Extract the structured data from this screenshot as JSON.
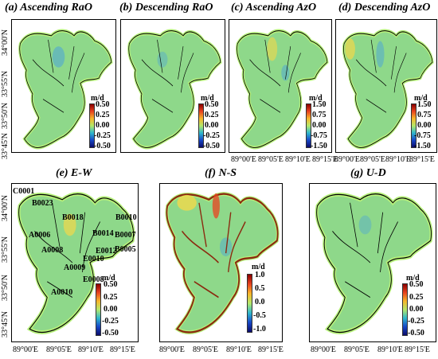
{
  "panels": {
    "a": {
      "title": "(a) Ascending RaO",
      "unit": "m/d",
      "ticks": [
        "0.50",
        "0.25",
        "0.00",
        "-0.25",
        "-0.50"
      ]
    },
    "b": {
      "title": "(b) Descending RaO",
      "unit": "m/d",
      "ticks": [
        "0.50",
        "0.25",
        "0.00",
        "-0.25",
        "-0.50"
      ]
    },
    "c": {
      "title": "(c) Ascending AzO",
      "unit": "m/d",
      "ticks": [
        "1.50",
        "0.75",
        "0.00",
        "-0.75",
        "-1.50"
      ]
    },
    "d": {
      "title": "(d) Descending AzO",
      "unit": "m/d",
      "ticks": [
        "1.50",
        "0.75",
        "0.00",
        "-0.75",
        "-1.50"
      ]
    },
    "e": {
      "title": "(e) E-W",
      "unit": "m/d",
      "ticks": [
        "0.50",
        "0.25",
        "0.00",
        "-0.25",
        "-0.50"
      ]
    },
    "f": {
      "title": "(f) N-S",
      "unit": "m/d",
      "ticks": [
        "1.0",
        "0.5",
        "0.0",
        "-0.5",
        "-1.0"
      ]
    },
    "g": {
      "title": "(g) U-D",
      "unit": "m/d",
      "ticks": [
        "0.50",
        "0.25",
        "0.00",
        "-0.25",
        "-0.50"
      ]
    }
  },
  "axes": {
    "top_lat": [
      "34°00'N",
      "33°55'N",
      "33°50'N",
      "33°45'N"
    ],
    "bottom_lat": [
      "34°00'N",
      "33°55'N",
      "33°50'N",
      "33°45'N"
    ],
    "top_lon": [
      "89°00'E",
      "89°05'E",
      "89°10'E",
      "89°15'E"
    ],
    "bottom_lon": [
      "89°00'E",
      "89°05'E",
      "89°10'E",
      "89°15'E"
    ]
  },
  "points": [
    "C0001",
    "B0023",
    "B0018",
    "B0010",
    "A0006",
    "B0014",
    "B0007",
    "A0008",
    "E0012",
    "B0005",
    "E0010",
    "A0009",
    "E0008",
    "A0010"
  ],
  "colors": {
    "ice": "#8ed88a",
    "outline": "#000000",
    "warm": "#f2d94a",
    "cool": "#4aa4d8",
    "border_glow": "#b6f07a"
  }
}
